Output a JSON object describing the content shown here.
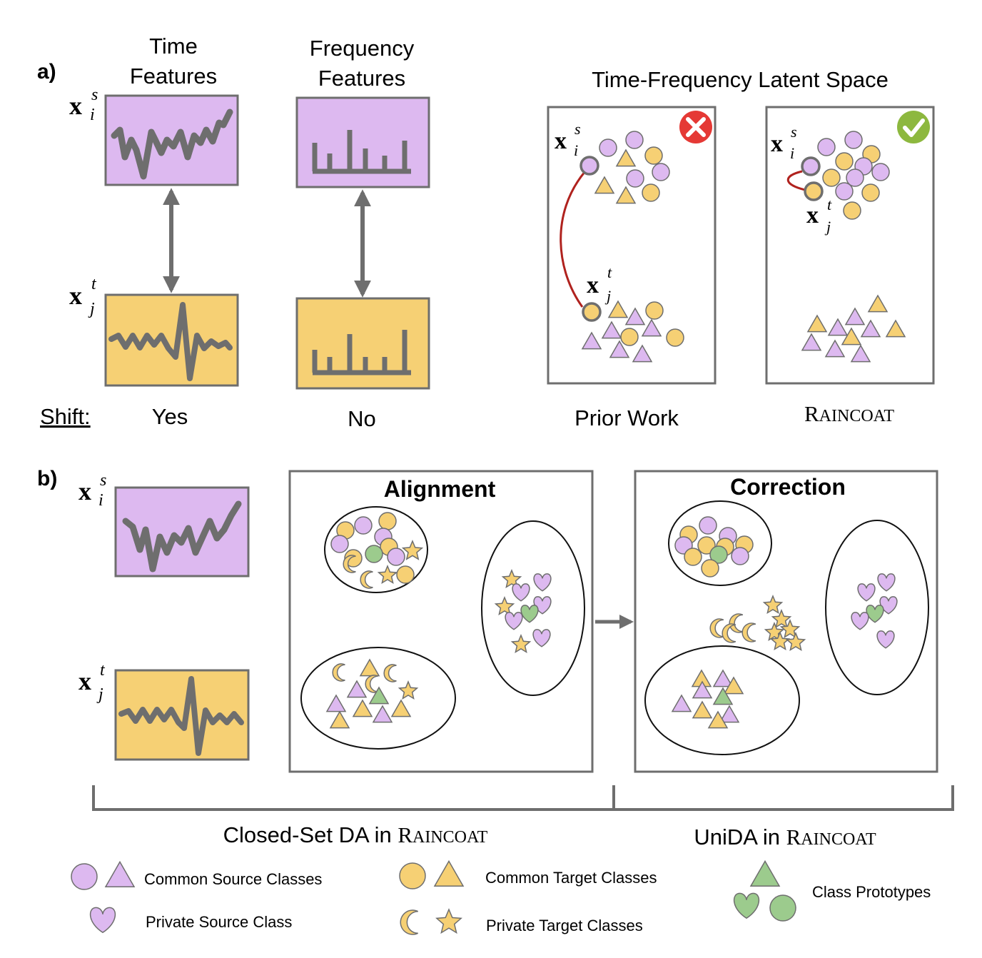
{
  "colors": {
    "purple": "#DDB9F0",
    "yellow": "#F6D074",
    "green": "#9CCB8D",
    "gray": "#6E6E6E",
    "red_link": "#B0221E",
    "bad_badge": "#E53935",
    "good_badge": "#8DB83F"
  },
  "panel_a": {
    "label": "a)",
    "time_header": [
      "Time",
      "Features"
    ],
    "freq_header": [
      "Frequency",
      "Features"
    ],
    "source_sym": {
      "base": "x",
      "sup": "s",
      "sub": "i"
    },
    "target_sym": {
      "base": "x",
      "sup": "t",
      "sub": "j"
    },
    "shift_label": "Shift:",
    "shift_time": "Yes",
    "shift_freq": "No",
    "latent_title": "Time-Frequency Latent Space",
    "prior_caption": "Prior Work",
    "prior_badge_icon": "x-mark-icon",
    "raincoat_caption": "Raincoat",
    "raincoat_badge_icon": "check-mark-icon"
  },
  "panel_b": {
    "label": "b)",
    "alignment_title": "Alignment",
    "correction_title": "Correction",
    "closed_set_caption": "Closed-Set DA in Raincoat",
    "unida_caption": "UniDA in Raincoat",
    "closed_set_prefix": "Closed-Set DA in ",
    "unida_prefix": "UniDA in ",
    "raincoat_word": "Raincoat"
  },
  "legend": {
    "common_source": "Common Source Classes",
    "common_target": "Common Target Classes",
    "prototypes": "Class Prototypes",
    "private_source": "Private Source Class",
    "private_target": "Private Target Classes"
  }
}
